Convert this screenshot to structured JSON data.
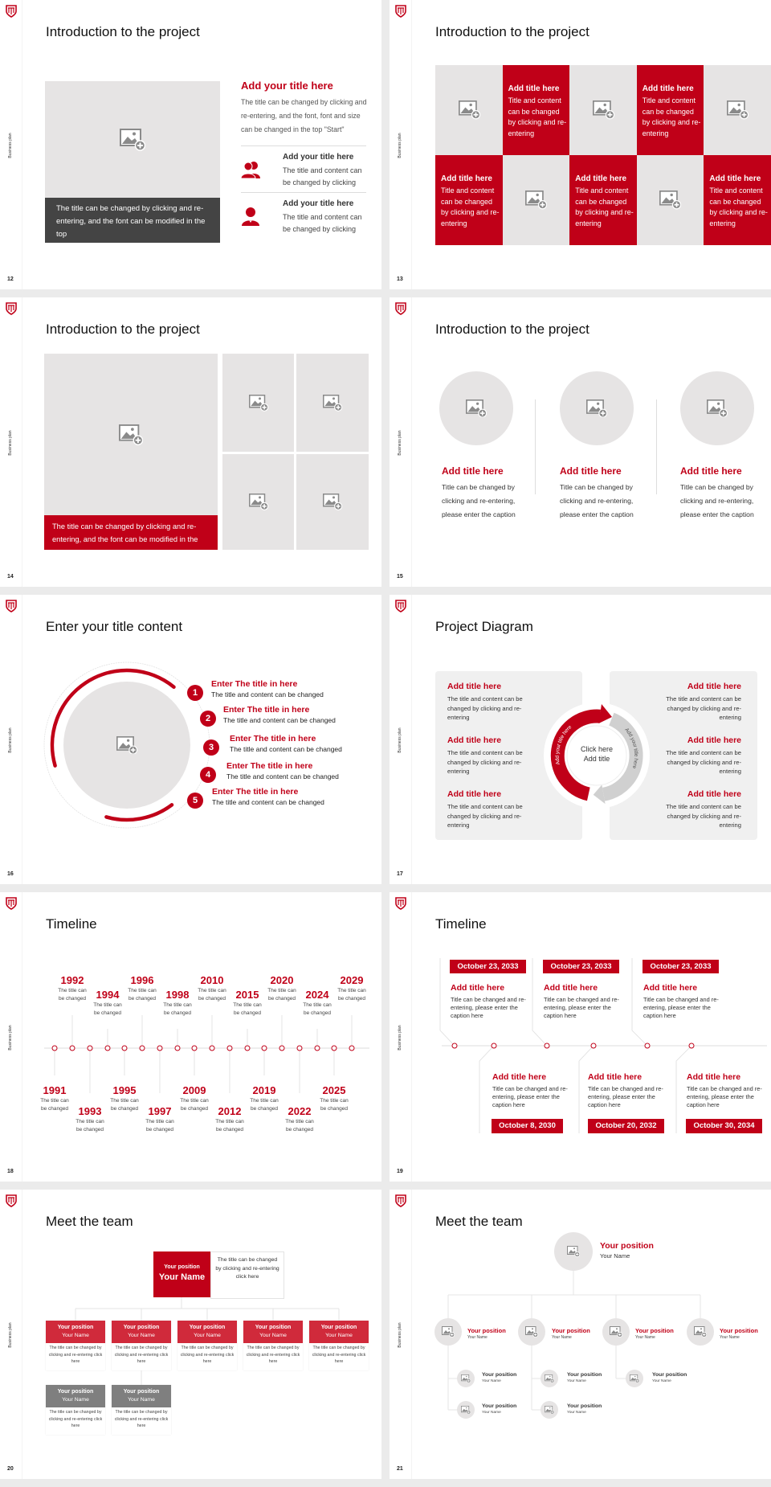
{
  "sidebar_label": "Business plan",
  "colors": {
    "accent": "#c00018",
    "accent_light": "#d02a3b",
    "placeholder": "#e6e4e4",
    "dark_caption": "#444444",
    "gray_header": "#7f7f7f"
  },
  "icons": {
    "logo": "shield-logo-icon",
    "placeholder": "image-add-icon",
    "people": "people-icon",
    "person": "person-icon"
  },
  "slides": {
    "s12": {
      "number": "12",
      "title": "Introduction to the project",
      "caption": "The title can be changed by clicking and re-entering, and the font can be modified in the top",
      "heading": "Add your title here",
      "body": "The title can be changed by clicking and re-entering, and the font, font and size can be changed in the top \"Start\"",
      "items": [
        {
          "title": "Add your title here",
          "text": "The title and content can be changed by clicking"
        },
        {
          "title": "Add your title here",
          "text": "The title and content can be changed by clicking"
        }
      ]
    },
    "s13": {
      "number": "13",
      "title": "Introduction to the project",
      "cells": [
        {
          "title": "Add title here",
          "text": "Title and content can be changed by clicking and re-entering"
        },
        {
          "title": "Add title here",
          "text": "Title and content can be changed by clicking and re-entering"
        },
        {
          "title": "Add title here",
          "text": "Title and content can be changed by clicking and re-entering"
        },
        {
          "title": "Add title here",
          "text": "Title and content can be changed by clicking and re-entering"
        },
        {
          "title": "Add title here",
          "text": "Title and content can be changed by clicking and re-entering"
        }
      ]
    },
    "s14": {
      "number": "14",
      "title": "Introduction to the project",
      "caption": "The title can be changed by clicking and re-entering, and the font can be modified in the top"
    },
    "s15": {
      "number": "15",
      "title": "Introduction to the project",
      "items": [
        {
          "title": "Add title here",
          "text": "Title can be changed by clicking and re-entering, please enter the caption"
        },
        {
          "title": "Add title here",
          "text": "Title can be changed by clicking and re-entering, please enter the caption"
        },
        {
          "title": "Add title here",
          "text": "Title can be changed by clicking and re-entering, please enter the caption"
        }
      ]
    },
    "s16": {
      "number": "16",
      "title": "Enter your title content",
      "items": [
        {
          "n": "1",
          "title": "Enter The title in here",
          "text": "The title and content can be changed"
        },
        {
          "n": "2",
          "title": "Enter The title in here",
          "text": "The title and content can be changed"
        },
        {
          "n": "3",
          "title": "Enter The title in here",
          "text": "The title and content can be changed"
        },
        {
          "n": "4",
          "title": "Enter The title in here",
          "text": "The title and content can be changed"
        },
        {
          "n": "5",
          "title": "Enter The title in here",
          "text": "The title and content can be changed"
        }
      ]
    },
    "s17": {
      "number": "17",
      "title": "Project Diagram",
      "center_line1": "Click here",
      "center_line2": "Add title",
      "arc_left": "Add your title here",
      "arc_right": "Add your title here",
      "left": [
        {
          "title": "Add title here",
          "text": "The title and content can be changed by clicking and re-entering"
        },
        {
          "title": "Add title here",
          "text": "The title and content can be changed by clicking and re-entering"
        },
        {
          "title": "Add title here",
          "text": "The title and content can be changed by clicking and re-entering"
        }
      ],
      "right": [
        {
          "title": "Add title here",
          "text": "The title and content can be changed by clicking and re-entering"
        },
        {
          "title": "Add title here",
          "text": "The title and content can be changed by clicking and re-entering"
        },
        {
          "title": "Add title here",
          "text": "The title and content can be changed by clicking and re-entering"
        }
      ]
    },
    "s18": {
      "number": "18",
      "title": "Timeline",
      "events": [
        {
          "year": "1991",
          "text": "The title can be changed"
        },
        {
          "year": "1992",
          "text": "The title can be changed"
        },
        {
          "year": "1993",
          "text": "The title can be changed"
        },
        {
          "year": "1994",
          "text": "The title can be changed"
        },
        {
          "year": "1995",
          "text": "The title can be changed"
        },
        {
          "year": "1996",
          "text": "The title can be changed"
        },
        {
          "year": "1997",
          "text": "The title can be changed"
        },
        {
          "year": "1998",
          "text": "The title can be changed"
        },
        {
          "year": "2009",
          "text": "The title can be changed"
        },
        {
          "year": "2010",
          "text": "The title can be changed"
        },
        {
          "year": "2012",
          "text": "The title can be changed"
        },
        {
          "year": "2015",
          "text": "The title can be changed"
        },
        {
          "year": "2019",
          "text": "The title can be changed"
        },
        {
          "year": "2020",
          "text": "The title can be changed"
        },
        {
          "year": "2022",
          "text": "The title can be changed"
        },
        {
          "year": "2024",
          "text": "The title can be changed"
        },
        {
          "year": "2025",
          "text": "The title can be changed"
        },
        {
          "year": "2029",
          "text": "The title can be changed"
        }
      ]
    },
    "s19": {
      "number": "19",
      "title": "Timeline",
      "top": [
        {
          "date": "October 23, 2033",
          "title": "Add title here",
          "text": "Title can be changed and re-entering, please enter the caption here"
        },
        {
          "date": "October 23, 2033",
          "title": "Add title here",
          "text": "Title can be changed and re-entering, please enter the caption here"
        },
        {
          "date": "October 23, 2033",
          "title": "Add title here",
          "text": "Title can be changed and re-entering, please enter the caption here"
        }
      ],
      "bottom": [
        {
          "date": "October 8, 2030",
          "title": "Add title here",
          "text": "Title can be changed and re-entering, please enter the caption here"
        },
        {
          "date": "October 20, 2032",
          "title": "Add title here",
          "text": "Title can be changed and re-entering, please enter the caption here"
        },
        {
          "date": "October 30, 2034",
          "title": "Add title here",
          "text": "Title can be changed and re-entering, please enter the caption here"
        }
      ]
    },
    "s20": {
      "number": "20",
      "title": "Meet the team",
      "lead": {
        "position": "Your position",
        "name": "Your Name",
        "text": "The title can be changed by clicking and re-entering click here"
      },
      "members": [
        {
          "position": "Your position",
          "name": "Your Name",
          "text": "The title can be changed by clicking and re-entering click here"
        },
        {
          "position": "Your position",
          "name": "Your Name",
          "text": "The title can be changed by clicking and re-entering click here"
        },
        {
          "position": "Your position",
          "name": "Your Name",
          "text": "The title can be changed by clicking and re-entering click here"
        },
        {
          "position": "Your position",
          "name": "Your Name",
          "text": "The title can be changed by clicking and re-entering click here"
        },
        {
          "position": "Your position",
          "name": "Your Name",
          "text": "The title can be changed by clicking and re-entering click here"
        },
        {
          "position": "Your position",
          "name": "Your Name",
          "text": "The title can be changed by clicking and re-entering click here"
        },
        {
          "position": "Your position",
          "name": "Your Name",
          "text": "The title can be changed by clicking and re-entering click here"
        }
      ]
    },
    "s21": {
      "number": "21",
      "title": "Meet the team",
      "lead": {
        "position": "Your position",
        "name": "Your Name"
      },
      "level2": [
        {
          "position": "Your position",
          "name": "Your Name"
        },
        {
          "position": "Your position",
          "name": "Your Name"
        },
        {
          "position": "Your position",
          "name": "Your Name"
        },
        {
          "position": "Your position",
          "name": "Your Name"
        }
      ],
      "level3": [
        {
          "position": "Your position",
          "name": "Your Name"
        },
        {
          "position": "Your position",
          "name": "Your Name"
        },
        {
          "position": "Your position",
          "name": "Your Name"
        },
        {
          "position": "Your position",
          "name": "Your Name"
        },
        {
          "position": "Your position",
          "name": "Your Name"
        }
      ]
    }
  }
}
